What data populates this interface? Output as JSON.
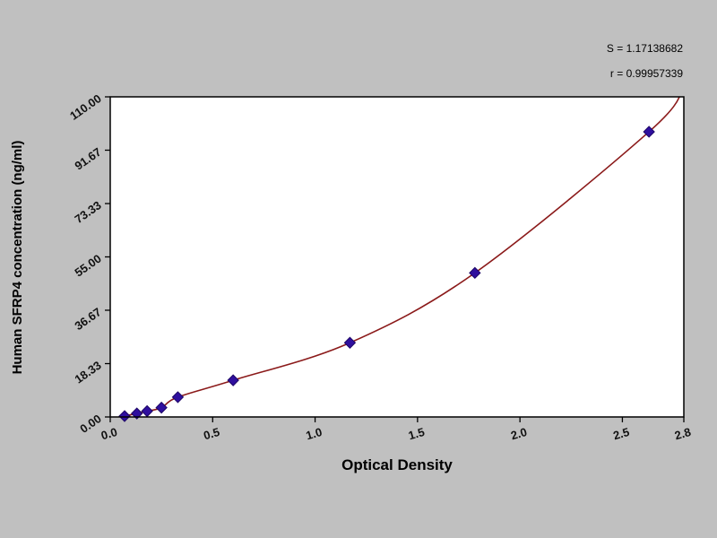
{
  "window": {
    "background_color": "#c0c0c0",
    "plot_background_color": "#ffffff",
    "frame_color": "#000000"
  },
  "chart_data": {
    "type": "scatter",
    "title": "",
    "xlabel": "Optical Density",
    "ylabel": "Human SFRP4 concentration (ng/ml)",
    "xlim": [
      0,
      2.8
    ],
    "ylim": [
      0,
      110
    ],
    "grid": false,
    "legend": "none",
    "x_ticks": {
      "values": [
        0,
        0.5,
        1.0,
        1.5,
        2.0,
        2.5,
        2.8
      ],
      "labels": [
        "0.0",
        "0.5",
        "1.0",
        "1.5",
        "2.0",
        "2.5",
        "2.8"
      ]
    },
    "y_ticks": {
      "values": [
        0,
        18.33,
        36.67,
        55.0,
        73.33,
        91.67,
        110.0
      ],
      "labels": [
        "0.00",
        "18.33",
        "36.67",
        "55.00",
        "73.33",
        "91.67",
        "110.00"
      ]
    },
    "annotations": [
      "S = 1.17138682",
      "r = 0.99957339"
    ],
    "series": [
      {
        "name": "standard-points",
        "type": "scatter",
        "marker": "diamond",
        "color": "#2f0f9e",
        "points": [
          {
            "x": 0.07,
            "y": 0.3
          },
          {
            "x": 0.13,
            "y": 1.2
          },
          {
            "x": 0.18,
            "y": 2.0
          },
          {
            "x": 0.25,
            "y": 3.2
          },
          {
            "x": 0.33,
            "y": 6.8
          },
          {
            "x": 0.6,
            "y": 12.6
          },
          {
            "x": 1.17,
            "y": 25.5
          },
          {
            "x": 1.78,
            "y": 49.5
          },
          {
            "x": 2.63,
            "y": 98.0
          }
        ]
      },
      {
        "name": "fit-curve",
        "type": "line",
        "color": "#8b1a1a",
        "extension_start": {
          "x": 0.04,
          "y": 0.0
        },
        "extension_end": {
          "x": 2.8,
          "y": 113.0
        }
      }
    ]
  }
}
